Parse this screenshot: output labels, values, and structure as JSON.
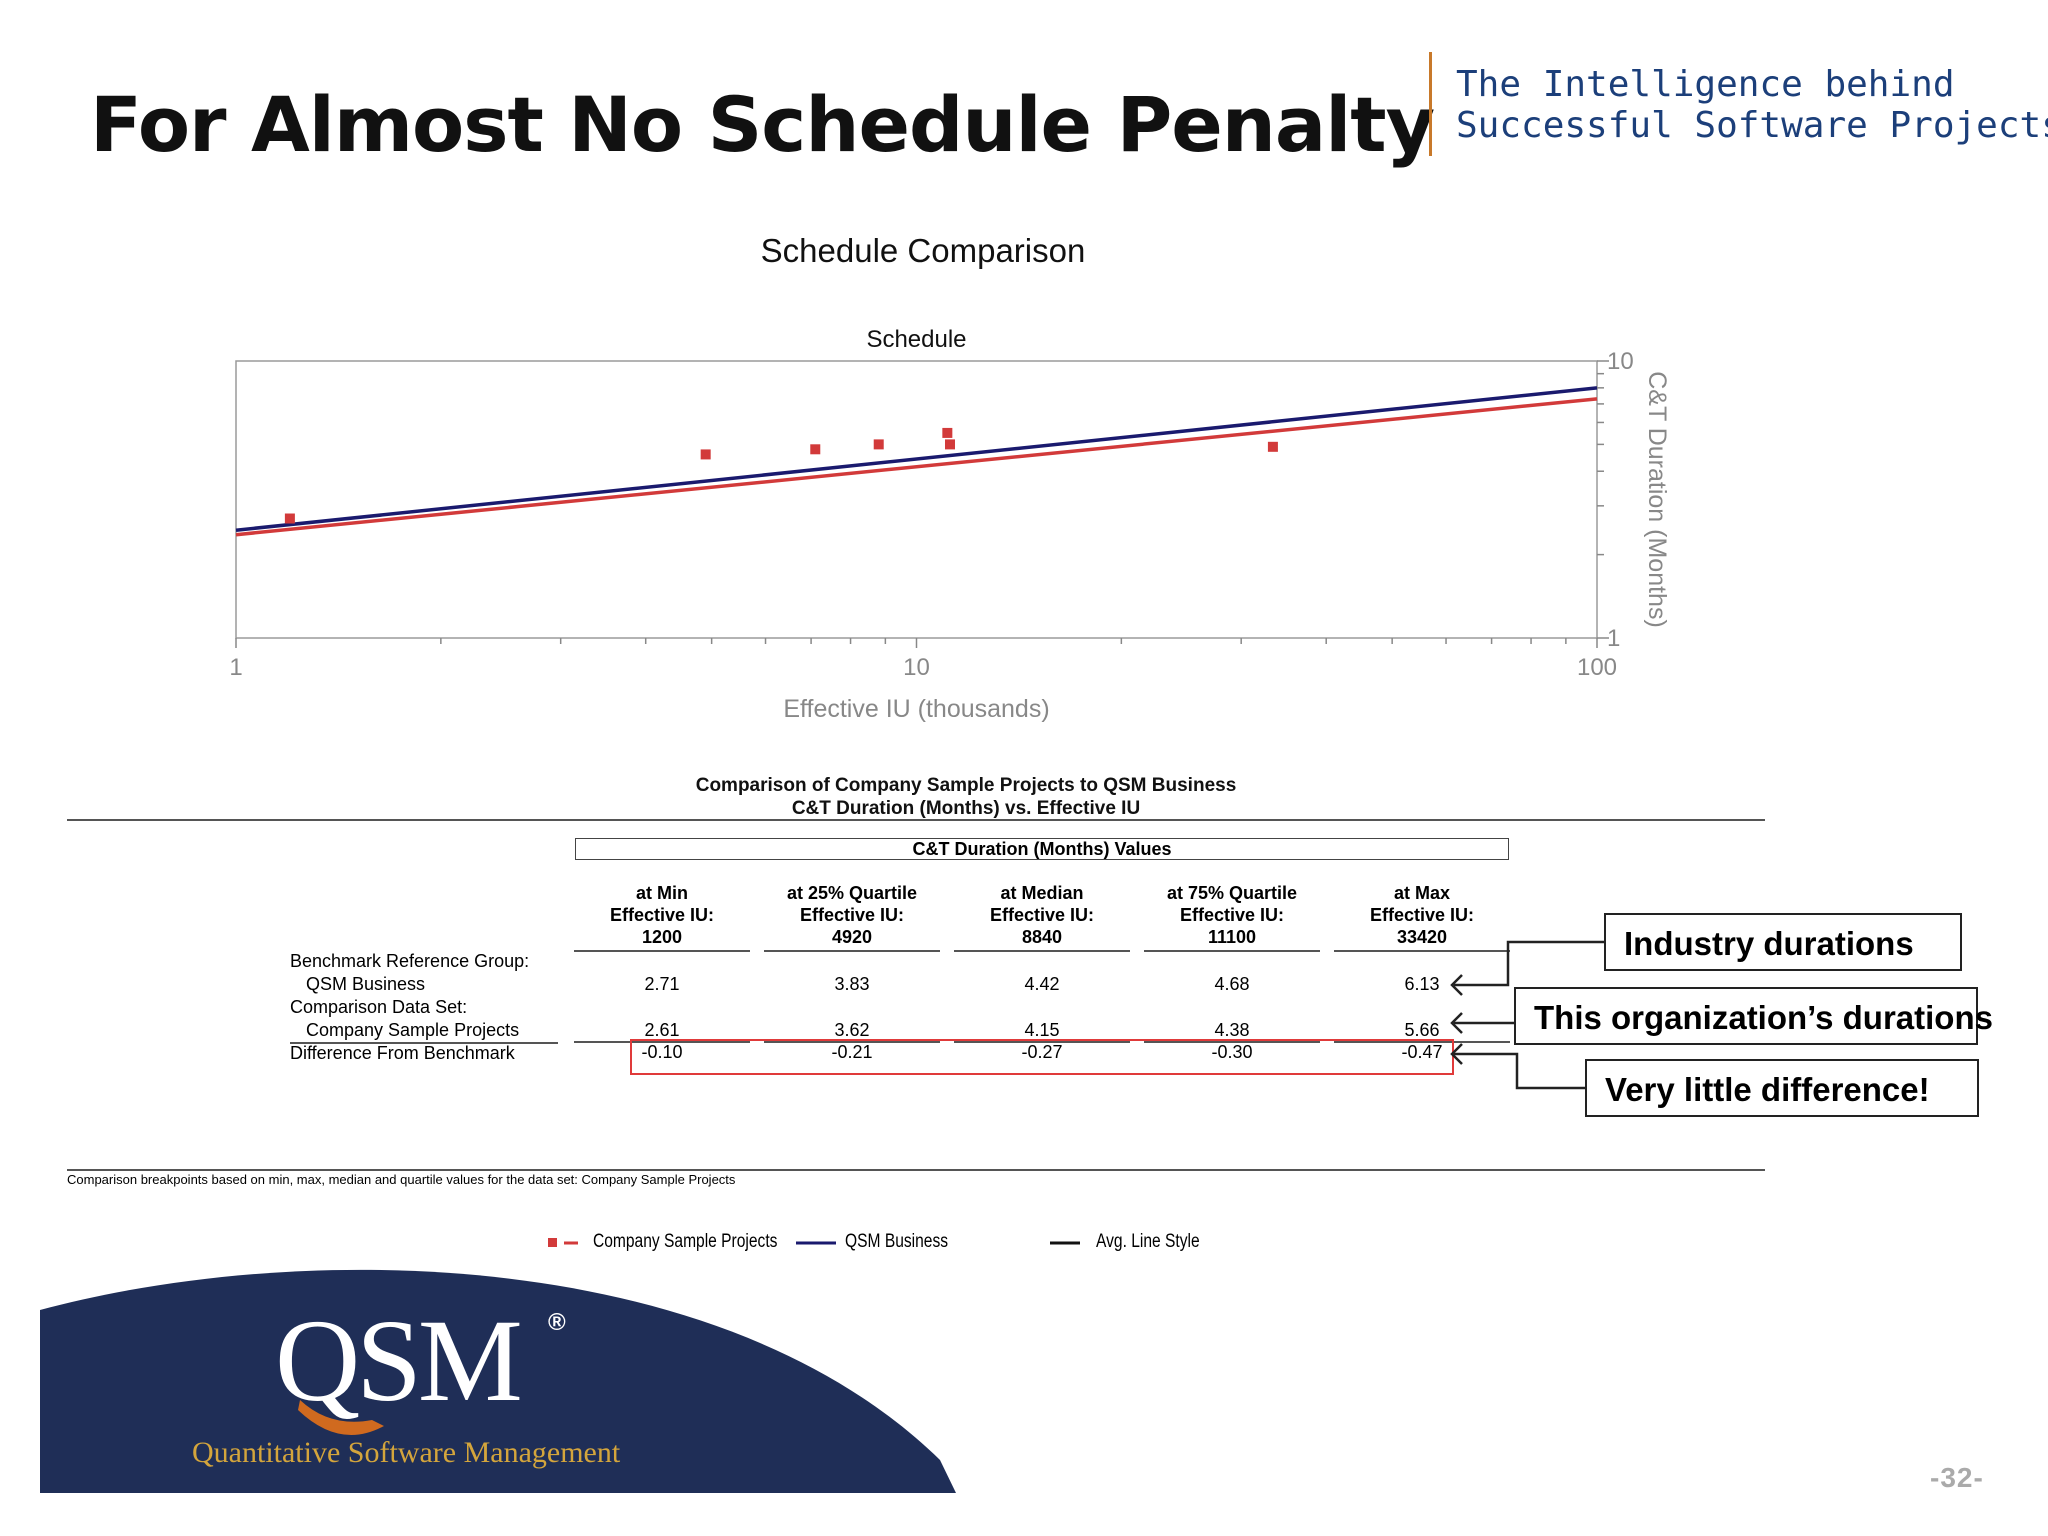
{
  "slide": {
    "title": "For Almost No Schedule Penalty",
    "tagline_line1": "The Intelligence behind",
    "tagline_line2": "Successful Software Projects",
    "page_number": "-32-"
  },
  "chart_data": {
    "type": "scatter",
    "title": "Schedule Comparison",
    "subtitle": "Schedule",
    "xlabel": "Effective IU (thousands)",
    "ylabel": "C&T Duration (Months)",
    "x_scale": "log",
    "y_scale": "log",
    "xlim": [
      1,
      100
    ],
    "ylim": [
      1,
      10
    ],
    "x_ticks": [
      "1",
      "10",
      "100"
    ],
    "y_ticks": [
      "1",
      "10"
    ],
    "y_axis_side": "right",
    "grid": false,
    "series": [
      {
        "name": "Company Sample Projects",
        "kind": "points+trend",
        "color": "#d23a3a",
        "points": [
          {
            "x": 1.2,
            "y": 2.7
          },
          {
            "x": 4.9,
            "y": 4.6
          },
          {
            "x": 7.1,
            "y": 4.8
          },
          {
            "x": 8.8,
            "y": 5.0
          },
          {
            "x": 11.1,
            "y": 5.5
          },
          {
            "x": 11.2,
            "y": 5.0
          },
          {
            "x": 33.4,
            "y": 4.9
          }
        ],
        "trend": [
          {
            "x": 1,
            "y": 2.36
          },
          {
            "x": 100,
            "y": 7.3
          }
        ]
      },
      {
        "name": "QSM Business",
        "kind": "line",
        "color": "#1a1a6e",
        "trend": [
          {
            "x": 1,
            "y": 2.45
          },
          {
            "x": 100,
            "y": 8.0
          }
        ]
      }
    ]
  },
  "table": {
    "title_line1": "Comparison of Company Sample Projects to QSM Business",
    "title_line2": "C&T Duration (Months) vs. Effective IU",
    "values_header": "C&T Duration (Months) Values",
    "columns": [
      {
        "l1": "at Min",
        "l2": "Effective IU:",
        "l3": "1200"
      },
      {
        "l1": "at 25% Quartile",
        "l2": "Effective IU:",
        "l3": "4920"
      },
      {
        "l1": "at Median",
        "l2": "Effective IU:",
        "l3": "8840"
      },
      {
        "l1": "at 75% Quartile",
        "l2": "Effective IU:",
        "l3": "11100"
      },
      {
        "l1": "at Max",
        "l2": "Effective IU:",
        "l3": "33420"
      }
    ],
    "row_labels": {
      "benchmark_group": "Benchmark Reference Group:",
      "benchmark_name": "QSM Business",
      "comparison_set": "Comparison Data Set:",
      "comparison_name": "Company Sample Projects",
      "difference": "Difference From Benchmark"
    },
    "benchmark_values": [
      "2.71",
      "3.83",
      "4.42",
      "4.68",
      "6.13"
    ],
    "comparison_values": [
      "2.61",
      "3.62",
      "4.15",
      "4.38",
      "5.66"
    ],
    "difference_values": [
      "-0.10",
      "-0.21",
      "-0.27",
      "-0.30",
      "-0.47"
    ],
    "footnote": "Comparison breakpoints based on min, max, median and quartile values for the data set: Company Sample Projects"
  },
  "callouts": {
    "industry": "Industry durations",
    "organization": "This organization’s durations",
    "difference": "Very little difference!"
  },
  "legend": {
    "items": [
      {
        "label": "Company Sample Projects",
        "color": "#d23a3a"
      },
      {
        "label": "QSM Business",
        "color": "#1a1a6e"
      },
      {
        "label": "Avg. Line Style",
        "color": "#111111"
      }
    ]
  },
  "logo": {
    "wordmark": "QSM",
    "registered": "®",
    "company": "Quantitative Software Management",
    "colors": {
      "navy": "#1f2e57",
      "gold": "#d4a53c",
      "orange": "#d06a1f"
    }
  }
}
